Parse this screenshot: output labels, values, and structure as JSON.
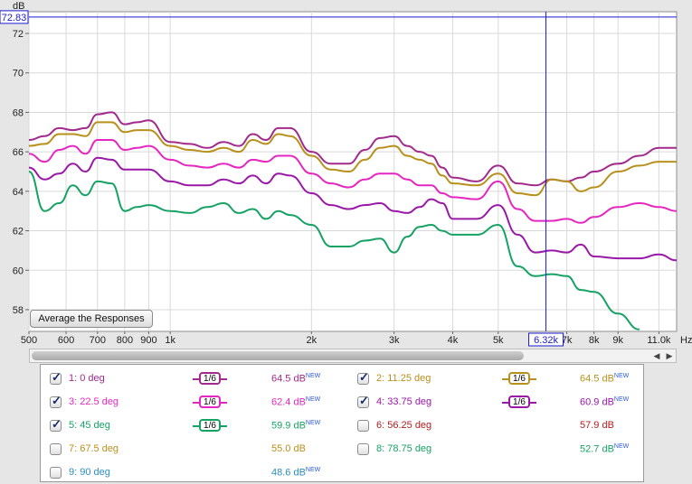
{
  "chart_data": {
    "type": "line",
    "ylabel": "dB",
    "xlabel": "Hz",
    "ylim": [
      56.9,
      73.1
    ],
    "xlim": [
      500,
      12000
    ],
    "x_scale": "log",
    "grid": true,
    "x_ticks": [
      500,
      600,
      700,
      800,
      900,
      1000,
      2000,
      3000,
      4000,
      5000,
      6320,
      7000,
      8000,
      9000,
      11000
    ],
    "x_tick_labels": [
      "500",
      "600",
      "700",
      "800",
      "900",
      "1k",
      "2k",
      "3k",
      "4k",
      "5k",
      "6.32k",
      "7k",
      "8k",
      "9k",
      "11.0k"
    ],
    "y_ticks": [
      58,
      60,
      62,
      64,
      66,
      68,
      70,
      72
    ],
    "y_tick_labels": [
      "58",
      "60",
      "62",
      "64",
      "66",
      "68",
      "70",
      "72"
    ],
    "cursor": {
      "x": 6320,
      "y": 72.83,
      "x_label": "6.32k",
      "y_label": "72.83"
    },
    "x": [
      500,
      540,
      580,
      620,
      660,
      700,
      750,
      800,
      850,
      900,
      1000,
      1100,
      1200,
      1300,
      1400,
      1500,
      1600,
      1700,
      1800,
      2000,
      2200,
      2400,
      2600,
      2800,
      3000,
      3200,
      3400,
      3600,
      3800,
      4000,
      4500,
      5000,
      5500,
      6000,
      6500,
      7000,
      7500,
      8000,
      9000,
      10000,
      11000,
      12000
    ],
    "series": [
      {
        "id": "1",
        "color": "#a12a8c",
        "values": [
          66.6,
          66.8,
          67.2,
          67.1,
          67.2,
          67.9,
          68.0,
          67.4,
          67.5,
          67.6,
          66.5,
          66.4,
          66.2,
          66.5,
          66.3,
          66.9,
          66.6,
          67.2,
          67.2,
          66.0,
          65.4,
          65.4,
          66.1,
          66.7,
          66.8,
          66.3,
          66.0,
          65.8,
          65.2,
          64.7,
          64.5,
          65.3,
          64.4,
          64.3,
          64.6,
          64.5,
          64.7,
          65.0,
          65.4,
          65.8,
          66.2,
          66.2
        ]
      },
      {
        "id": "2",
        "color": "#b8901c",
        "values": [
          66.3,
          66.4,
          66.9,
          66.9,
          66.8,
          67.5,
          67.5,
          67.0,
          67.1,
          67.1,
          66.3,
          66.1,
          66.0,
          66.2,
          66.0,
          66.6,
          66.4,
          66.9,
          66.8,
          65.8,
          65.1,
          65.0,
          65.6,
          66.2,
          66.3,
          65.8,
          65.6,
          65.4,
          64.8,
          64.4,
          64.3,
          64.9,
          63.9,
          63.8,
          64.6,
          64.5,
          64.0,
          64.2,
          65.0,
          65.3,
          65.5,
          65.5
        ]
      },
      {
        "id": "3",
        "color": "#e526c0",
        "values": [
          65.9,
          65.5,
          66.1,
          66.3,
          65.9,
          66.6,
          66.6,
          66.1,
          66.2,
          66.3,
          65.6,
          65.3,
          65.2,
          65.4,
          65.2,
          65.6,
          65.5,
          65.8,
          65.8,
          64.9,
          64.4,
          64.2,
          64.6,
          64.9,
          64.9,
          64.6,
          64.3,
          64.3,
          63.9,
          63.7,
          63.6,
          64.5,
          63.1,
          62.5,
          62.5,
          62.6,
          62.4,
          62.7,
          63.2,
          63.4,
          63.2,
          63.0
        ]
      },
      {
        "id": "4",
        "color": "#9a18a8",
        "values": [
          65.2,
          64.6,
          64.9,
          65.4,
          65.0,
          65.7,
          65.6,
          65.1,
          65.1,
          65.1,
          64.5,
          64.3,
          64.3,
          64.6,
          64.4,
          64.8,
          64.4,
          64.9,
          64.8,
          63.9,
          63.3,
          63.1,
          63.3,
          63.4,
          63.0,
          62.9,
          63.2,
          63.6,
          63.4,
          62.6,
          62.6,
          63.3,
          61.8,
          60.9,
          61.0,
          60.9,
          61.3,
          60.7,
          60.6,
          60.6,
          60.8,
          60.5
        ]
      },
      {
        "id": "5",
        "color": "#16a264",
        "values": [
          65.0,
          63.0,
          63.4,
          64.3,
          63.8,
          64.5,
          64.4,
          63.0,
          63.2,
          63.3,
          63.0,
          62.9,
          63.2,
          63.4,
          62.9,
          63.1,
          62.6,
          63.0,
          62.8,
          62.3,
          61.2,
          61.2,
          61.5,
          61.6,
          60.9,
          61.7,
          62.2,
          62.3,
          62.0,
          61.8,
          61.8,
          62.3,
          60.2,
          59.7,
          59.8,
          59.7,
          59.0,
          58.9,
          57.8,
          57.0,
          56.6,
          56.4
        ]
      }
    ]
  },
  "buttons": {
    "average": "Average the Responses"
  },
  "legend": [
    {
      "name": "1: 0 deg",
      "checked": true,
      "smoothing": "1/6",
      "level": "64.5 dB",
      "color": "#a12a8c"
    },
    {
      "name": "2: 11.25 deg",
      "checked": true,
      "smoothing": "1/6",
      "level": "64.5 dB",
      "color": "#b8901c"
    },
    {
      "name": "3: 22.5 deg",
      "checked": true,
      "smoothing": "1/6",
      "level": "62.4 dB",
      "color": "#e526c0"
    },
    {
      "name": "4: 33.75 deg",
      "checked": true,
      "smoothing": "1/6",
      "level": "60.9 dB",
      "color": "#9a18a8"
    },
    {
      "name": "5: 45 deg",
      "checked": true,
      "smoothing": "1/6",
      "level": "59.9 dB",
      "color": "#16a264"
    },
    {
      "name": "6: 56.25 deg",
      "checked": false,
      "smoothing": "",
      "level": "57.9 dB",
      "color": "#b81c1c"
    },
    {
      "name": "7: 67.5 deg",
      "checked": false,
      "smoothing": "",
      "level": "55.0 dB",
      "color": "#b8901c"
    },
    {
      "name": "8: 78.75 deg",
      "checked": false,
      "smoothing": "",
      "level": "52.7 dB",
      "color": "#16a264"
    },
    {
      "name": "9: 90 deg",
      "checked": false,
      "smoothing": "",
      "level": "48.6 dB",
      "color": "#2a8fc0"
    }
  ],
  "level_badge": "NEW"
}
